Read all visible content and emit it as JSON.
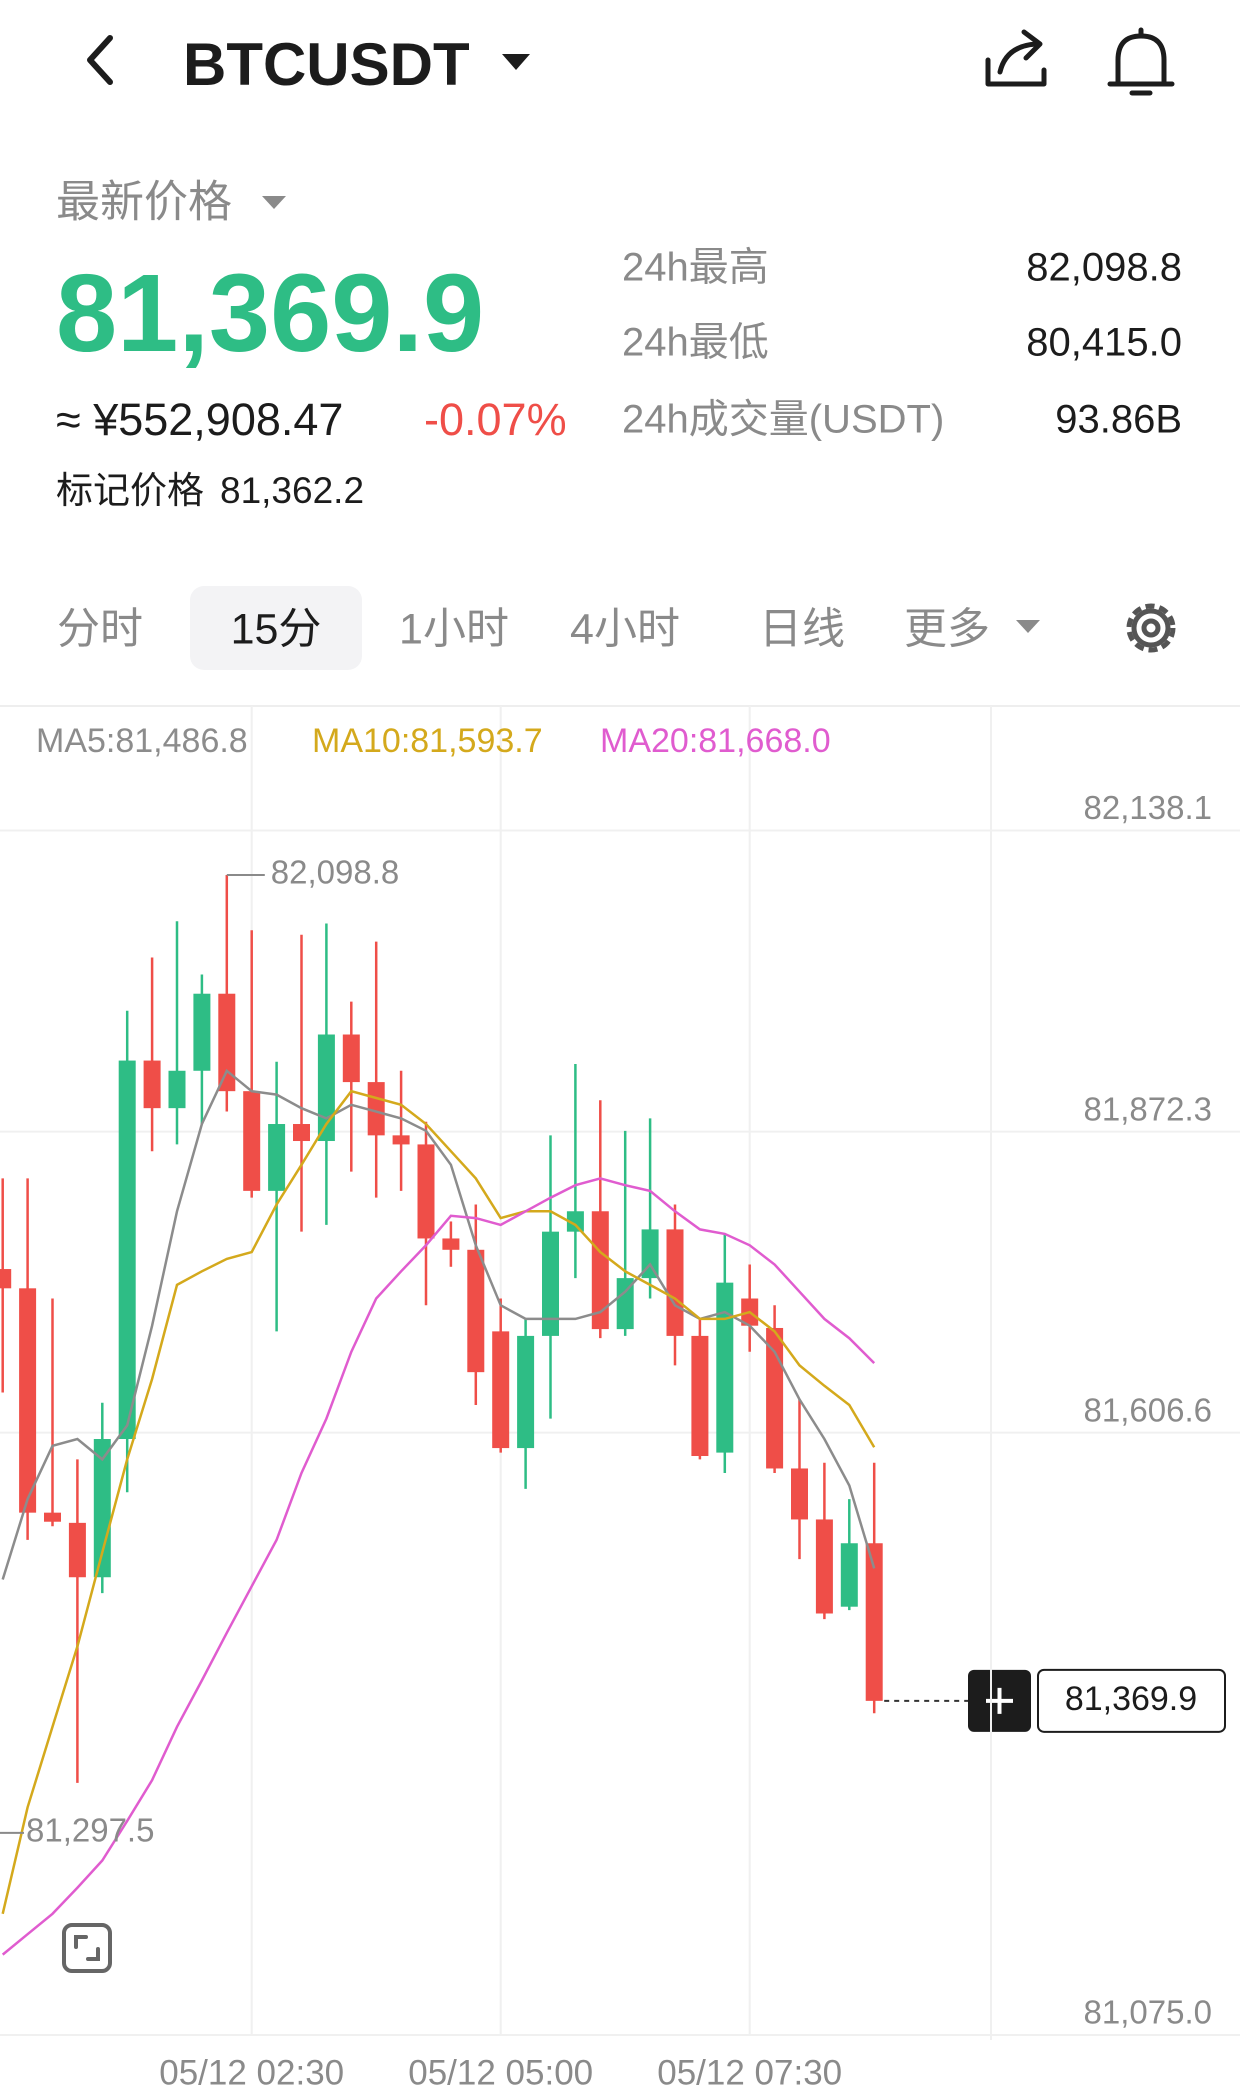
{
  "header": {
    "title": "BTCUSDT"
  },
  "price_panel": {
    "label": "最新价格",
    "last_price": "81,369.9",
    "cny_price": "≈ ¥552,908.47",
    "change": "-0.07%",
    "mark_price_label": "标记价格",
    "mark_price": "81,362.2",
    "stats": [
      {
        "label": "24h最高",
        "value": "82,098.8"
      },
      {
        "label": "24h最低",
        "value": "80,415.0"
      },
      {
        "label": "24h成交量(USDT)",
        "value": "93.86B"
      }
    ]
  },
  "tabs": {
    "items": [
      "分时",
      "15分",
      "1小时",
      "4小时",
      "日线",
      "更多"
    ],
    "active": 1
  },
  "chart_data": {
    "type": "candlestick",
    "categories": [
      null,
      null,
      null,
      null,
      null,
      null,
      null,
      null,
      null,
      null,
      "05/12 02:30",
      null,
      null,
      null,
      null,
      null,
      null,
      null,
      null,
      null,
      "05/12 05:00",
      null,
      null,
      null,
      null,
      null,
      null,
      null,
      null,
      null,
      "05/12 07:30",
      null,
      null,
      null,
      null,
      null
    ],
    "up_color": "#2ebd85",
    "down_color": "#ef4e48",
    "candles": {
      "open": [
        81751,
        81734,
        81536,
        81527,
        81479,
        81601,
        81935,
        81893,
        81926,
        81994,
        81908,
        81820,
        81879,
        81864,
        81958,
        81916,
        81869,
        81861,
        81778,
        81768,
        81696,
        81593,
        81692,
        81784,
        81802,
        81698,
        81743,
        81786,
        81692,
        81589,
        81725,
        81699,
        81575,
        81530,
        81453,
        81509
      ],
      "high": [
        81831,
        81831,
        81725,
        81583,
        81633,
        81979,
        82026,
        82058,
        82011,
        82098.8,
        82050,
        81934,
        82046,
        82056,
        81987,
        82040,
        81926,
        81881,
        81793,
        81808,
        81725,
        81707,
        81869,
        81932,
        81900,
        81873,
        81884,
        81808,
        81707,
        81782,
        81755,
        81719,
        81636,
        81580,
        81548,
        81580
      ],
      "low": [
        81642,
        81512,
        81524,
        81297.5,
        81465,
        81554,
        81855,
        81861,
        81879,
        81890,
        81814,
        81696,
        81784,
        81790,
        81837,
        81814,
        81820,
        81719,
        81753,
        81631,
        81589,
        81557,
        81619,
        81743,
        81690,
        81692,
        81725,
        81666,
        81583,
        81571,
        81678,
        81571,
        81495,
        81442,
        81450,
        81359
      ],
      "close": [
        81734,
        81536,
        81528,
        81479,
        81601,
        81935,
        81893,
        81926,
        81994,
        81908,
        81820,
        81879,
        81864,
        81958,
        81916,
        81869,
        81861,
        81778,
        81768,
        81660,
        81593,
        81692,
        81784,
        81802,
        81698,
        81743,
        81786,
        81692,
        81586,
        81739,
        81701,
        81575,
        81530,
        81447,
        81509,
        81369.9
      ]
    },
    "ma": [
      {
        "name": "MA5:81,486.8",
        "color": "#8c8c8c",
        "values": [
          81477,
          81548,
          81595,
          81601,
          81583,
          81613,
          81701,
          81802,
          81879,
          81926,
          81908,
          81905,
          81893,
          81884,
          81896,
          81890,
          81884,
          81873,
          81843,
          81772,
          81719,
          81707,
          81707,
          81707,
          81713,
          81731,
          81755,
          81719,
          81707,
          81713,
          81701,
          81678,
          81636,
          81601,
          81560,
          81486.8
        ]
      },
      {
        "name": "MA10:81,593.7",
        "color": "#d4a91c",
        "values": [
          81182,
          81276,
          81347,
          81418,
          81501,
          81583,
          81654,
          81737,
          81749,
          81760,
          81766,
          81808,
          81843,
          81879,
          81908,
          81902,
          81896,
          81879,
          81855,
          81831,
          81796,
          81802,
          81802,
          81790,
          81766,
          81749,
          81737,
          81725,
          81707,
          81707,
          81713,
          81696,
          81666,
          81648,
          81631,
          81593.7
        ]
      },
      {
        "name": "MA20:81,668.0",
        "color": "#e05ccf",
        "values": [
          81146,
          81164,
          81182,
          81205,
          81229,
          81264,
          81300,
          81347,
          81388,
          81430,
          81471,
          81512,
          81571,
          81619,
          81678,
          81725,
          81749,
          81772,
          81798,
          81796,
          81790,
          81802,
          81814,
          81825,
          81831,
          81825,
          81820,
          81802,
          81786,
          81782,
          81772,
          81755,
          81731,
          81707,
          81690,
          81668.0
        ]
      }
    ],
    "ylim": [
      81075.0,
      82244.4
    ],
    "yticks": [
      {
        "value": 82138.1,
        "label": "82,138.1"
      },
      {
        "value": 81872.3,
        "label": "81,872.3"
      },
      {
        "value": 81606.6,
        "label": "81,606.6"
      },
      {
        "value": 81075.0,
        "label": "81,075.0"
      }
    ],
    "high_label": "82,098.8",
    "low_label": "81,297.5",
    "current_price_label": "81,369.9",
    "grid": true
  }
}
